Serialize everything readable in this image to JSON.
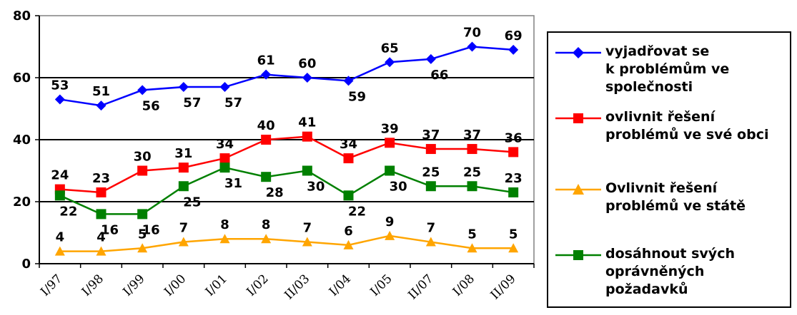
{
  "chart_data": {
    "type": "line",
    "categories": [
      "I/97",
      "I/98",
      "I/99",
      "I/00",
      "I/01",
      "I/02",
      "II/03",
      "I/04",
      "I/05",
      "II/07",
      "I/08",
      "II/09"
    ],
    "ylim": [
      0,
      80
    ],
    "yticks": [
      0,
      20,
      40,
      60,
      80
    ],
    "grid": true,
    "legend_position": "right",
    "series": [
      {
        "name": "vyjadřovat se\nk problémům ve\nspolečnosti",
        "color": "#0000FF",
        "marker": "diamond",
        "values": [
          53,
          51,
          56,
          57,
          57,
          61,
          60,
          59,
          65,
          66,
          70,
          69
        ]
      },
      {
        "name": "ovlivnit řešení\nproblémů ve své obci",
        "color": "#FF0000",
        "marker": "square",
        "values": [
          24,
          23,
          30,
          31,
          34,
          40,
          41,
          34,
          39,
          37,
          37,
          36
        ]
      },
      {
        "name": "Ovlivnit řešení\nproblémů ve státě",
        "color": "#FFA500",
        "marker": "triangle",
        "values": [
          4,
          4,
          5,
          7,
          8,
          8,
          7,
          6,
          9,
          7,
          5,
          5
        ]
      },
      {
        "name": "dosáhnout svých\noprávněných\npožadavků",
        "color": "#008000",
        "marker": "square",
        "values": [
          22,
          16,
          16,
          25,
          31,
          28,
          30,
          22,
          30,
          25,
          25,
          23
        ]
      }
    ]
  }
}
